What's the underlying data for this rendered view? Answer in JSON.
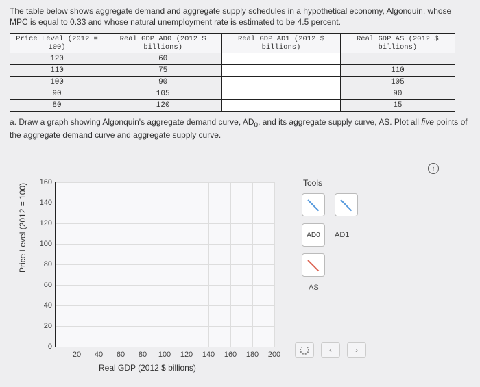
{
  "intro": "The table below shows aggregate demand and aggregate supply schedules in a hypothetical economy, Algonquin, whose MPC is equal to 0.33 and whose natural unemployment rate is estimated to be 4.5 percent.",
  "table": {
    "headers": [
      "Price Level (2012 = 100)",
      "Real GDP AD0 (2012 $ billions)",
      "Real GDP AD1 (2012 $ billions)",
      "Real GDP AS (2012 $ billions)"
    ],
    "rows": [
      [
        "120",
        "60",
        "",
        ""
      ],
      [
        "110",
        "75",
        "",
        "110"
      ],
      [
        "100",
        "90",
        "",
        "105"
      ],
      [
        "90",
        "105",
        "",
        "90"
      ],
      [
        "80",
        "120",
        "",
        "15"
      ]
    ]
  },
  "question_prefix": "a. Draw a graph showing Algonquin's aggregate demand curve, AD",
  "question_sub0": "0",
  "question_mid": ", and its aggregate supply curve, AS. Plot all ",
  "question_em": "five",
  "question_suffix": " points of the aggregate demand curve and aggregate supply curve.",
  "info_symbol": "i",
  "chart": {
    "ylabel": "Price Level (2012 = 100)",
    "xlabel": "Real GDP (2012 $ billions)",
    "y_ticks": [
      0,
      20,
      40,
      60,
      80,
      100,
      120,
      140,
      160
    ],
    "x_ticks": [
      20,
      40,
      60,
      80,
      100,
      120,
      140,
      160,
      180,
      200
    ],
    "grid_color": "#dddddd",
    "bg_color": "#f8f8fa"
  },
  "tools": {
    "title": "Tools",
    "items": [
      {
        "label": "AD0",
        "color": "#5599dd",
        "slope": "neg"
      },
      {
        "label": "AD1",
        "color": "#5599dd",
        "slope": "neg"
      },
      {
        "label": "AS",
        "color": "#dd6655",
        "slope": "pos"
      }
    ],
    "row1_btn1_icon_color": "#5599dd",
    "row1_btn2_icon_color": "#5599dd"
  },
  "bottom_buttons": {
    "refresh": "⟳",
    "left": "‹",
    "right": "›"
  }
}
